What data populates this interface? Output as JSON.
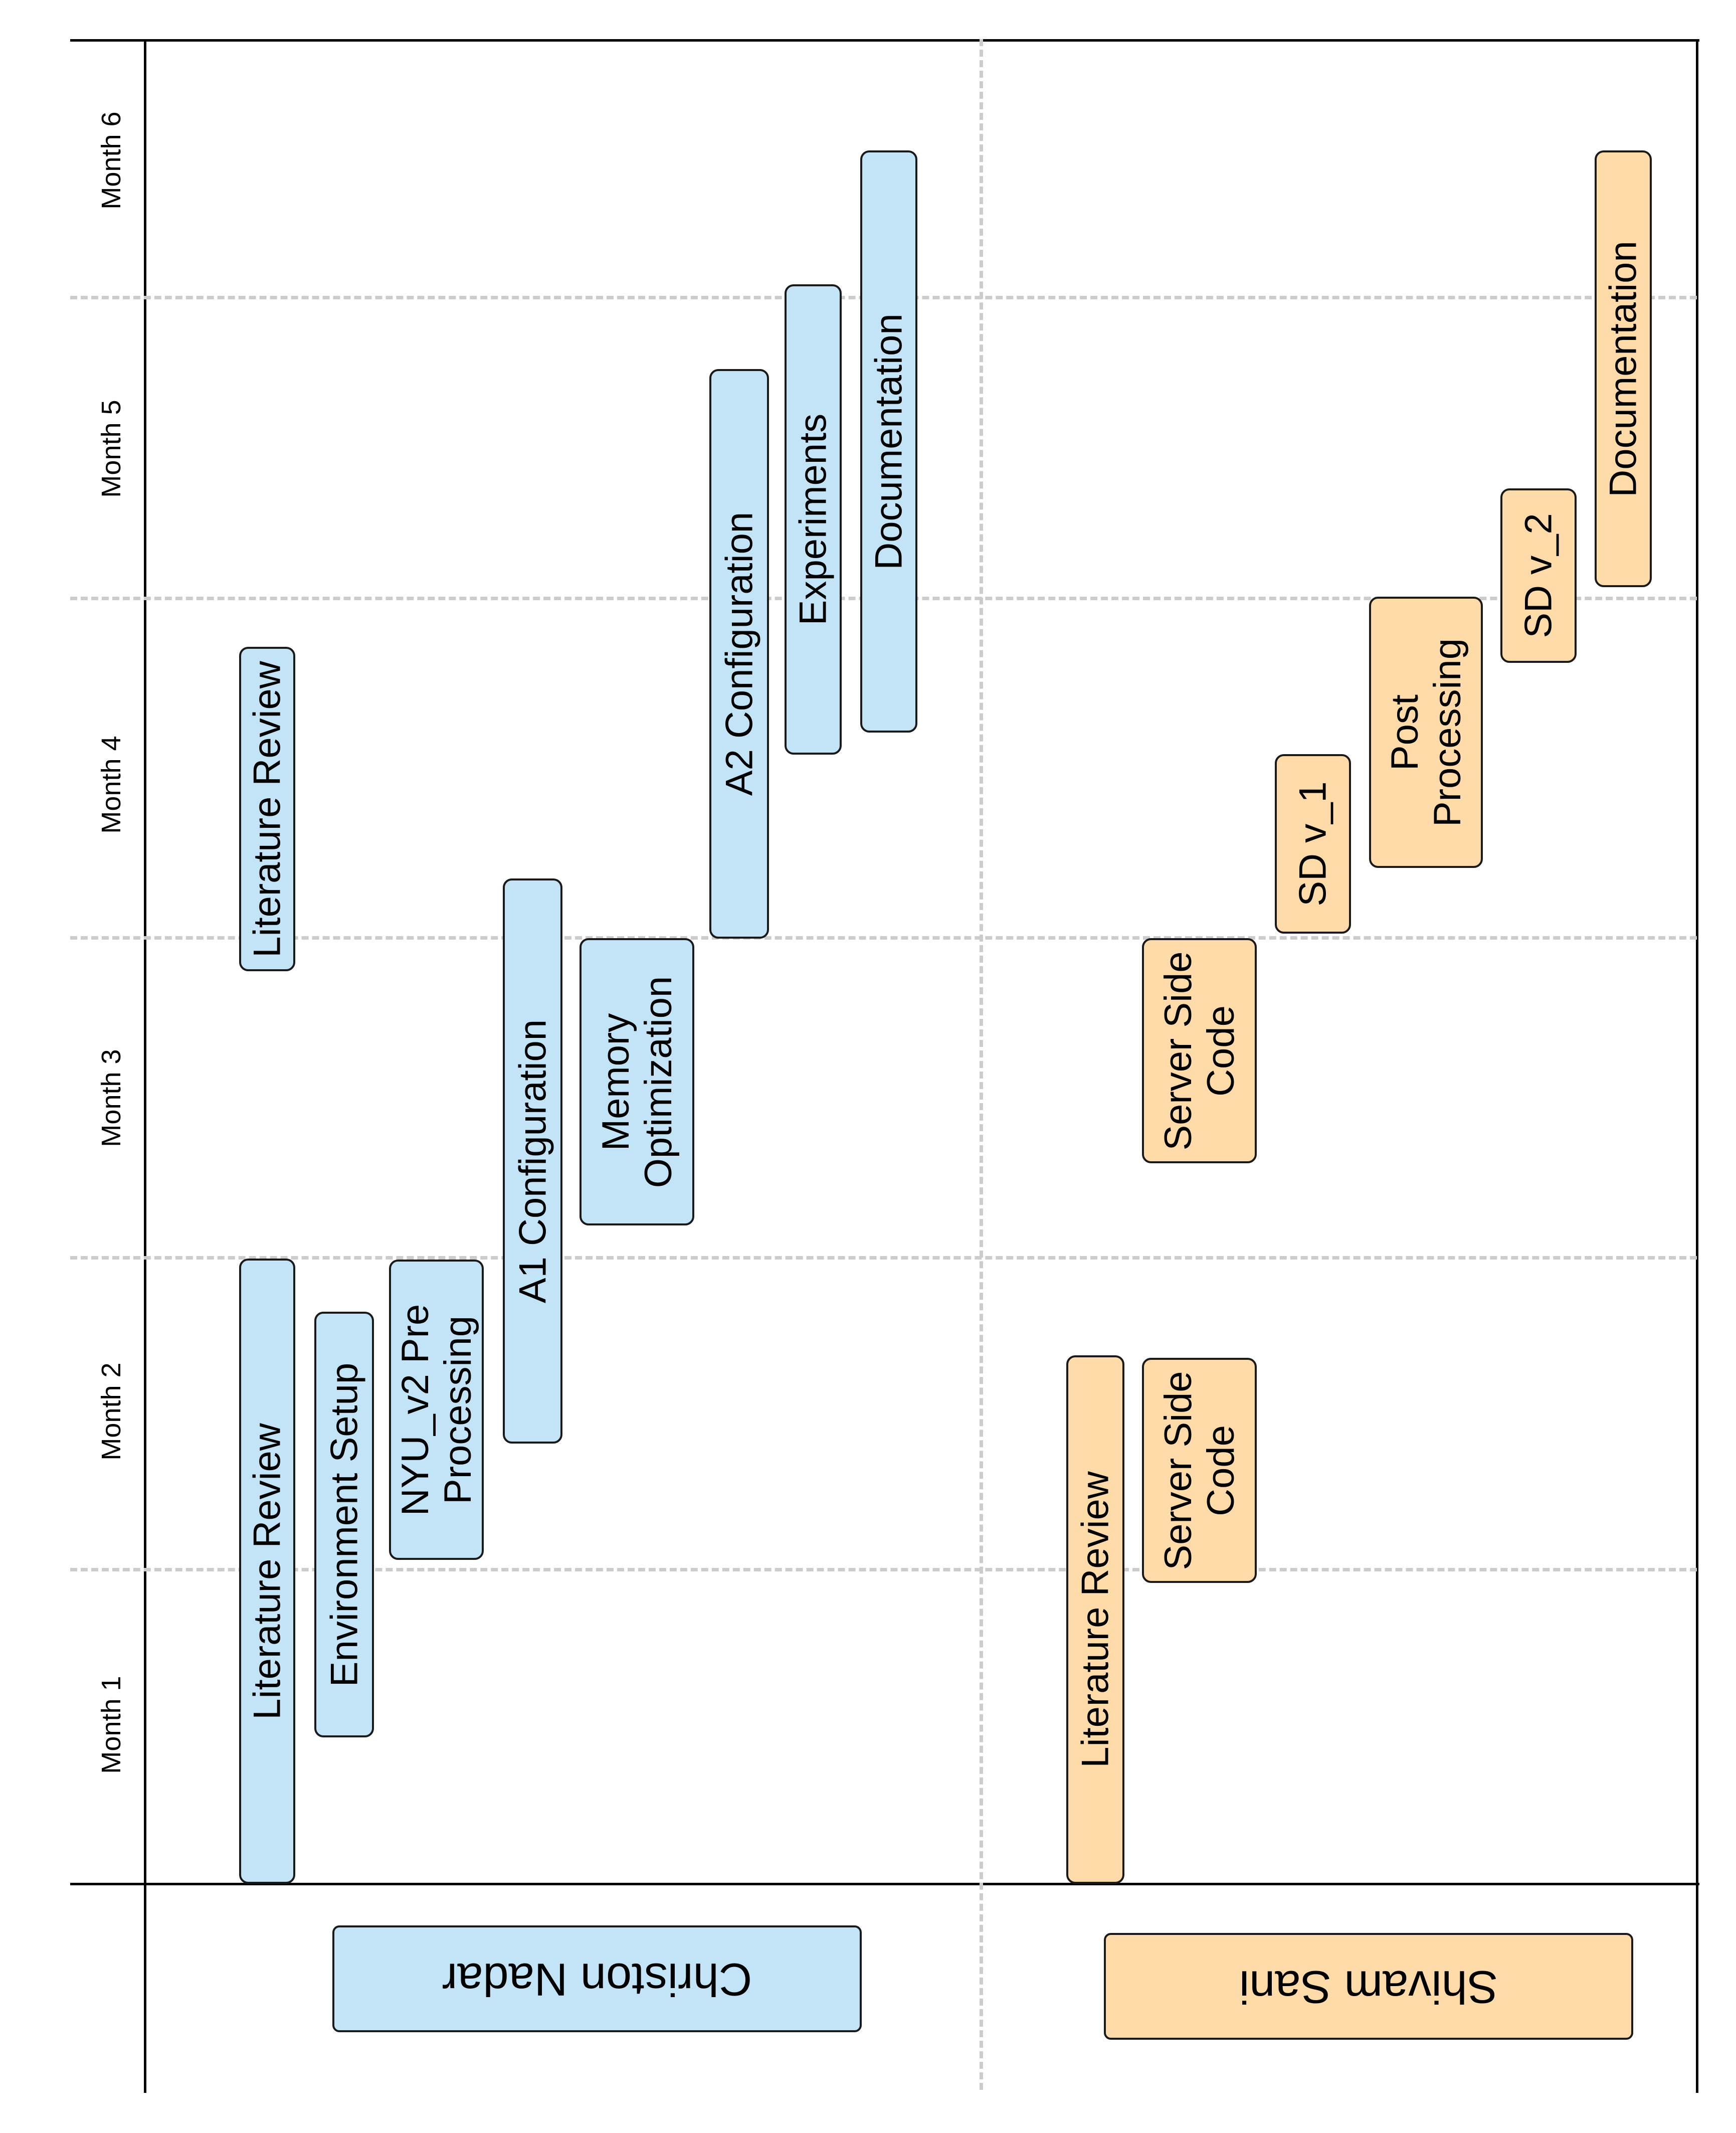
{
  "months": [
    "Month 1",
    "Month 2",
    "Month 3",
    "Month 4",
    "Month 5",
    "Month 6"
  ],
  "people": [
    {
      "name": "Christon Nadar",
      "color": "#c3e4f7"
    },
    {
      "name": "Shivam Sani",
      "color": "#fedba8"
    }
  ],
  "tasks": {
    "christon": [
      {
        "label": "Literature Review",
        "start_month": 0.0,
        "end_month": 2.0
      },
      {
        "label": "Environment Setup",
        "start_month": 0.47,
        "end_month": 1.83
      },
      {
        "label": "NYU_v2 Pre\nProcessing",
        "start_month": 0.04,
        "end_month": 2.0
      },
      {
        "label": "A1 Configuration",
        "start_month": 1.41,
        "end_month": 3.2
      },
      {
        "label": "Memory\nOptimization",
        "start_month": 2.11,
        "end_month": 3.0
      },
      {
        "label": "Literature Review",
        "start_month": 3.0,
        "end_month": 4.0
      },
      {
        "label": "A2 Configuration",
        "start_month": 3.0,
        "end_month": 4.75
      },
      {
        "label": "Experiments",
        "start_month": 3.61,
        "end_month": 5.0
      },
      {
        "label": "Documentation",
        "start_month": 3.68,
        "end_month": 5.4
      }
    ],
    "shivam": [
      {
        "label": "Literature Review",
        "start_month": 0.0,
        "end_month": 1.69
      },
      {
        "label": "Server Side\nCode",
        "start_month": 1.0,
        "end_month": 1.68
      },
      {
        "label": "Server Side\nCode",
        "start_month": 2.3,
        "end_month": 3.0
      },
      {
        "label": "SD v_1",
        "start_month": 3.0,
        "end_month": 3.52
      },
      {
        "label": "Post\nProcessing",
        "start_month": 3.2,
        "end_month": 4.0
      },
      {
        "label": "SD v_2",
        "start_month": 4.0,
        "end_month": 4.45
      },
      {
        "label": "Documentation",
        "start_month": 4.0,
        "end_month": 5.4
      }
    ]
  }
}
